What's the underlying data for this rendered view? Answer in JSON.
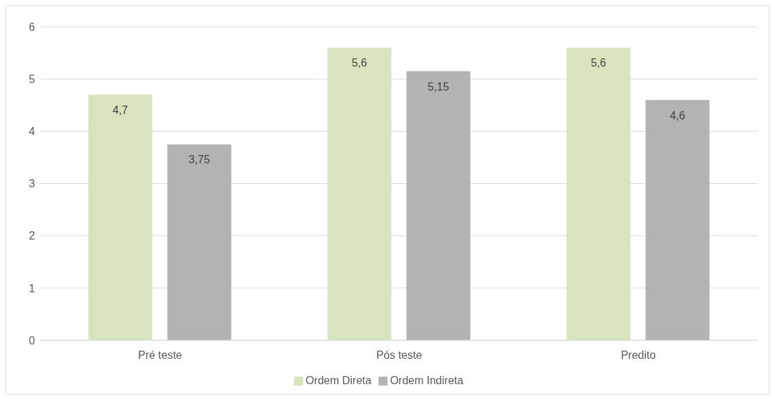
{
  "chart_data": {
    "type": "bar",
    "categories": [
      "Pré teste",
      "Pós teste",
      "Predito"
    ],
    "series": [
      {
        "name": "Ordem Direta",
        "color": "#d7e4bd",
        "values": [
          4.7,
          5.6,
          5.6
        ],
        "value_labels": [
          "4,7",
          "5,6",
          "5,6"
        ]
      },
      {
        "name": "Ordem Indireta",
        "color": "#b3b3b3",
        "values": [
          3.75,
          5.15,
          4.6
        ],
        "value_labels": [
          "3,75",
          "5,15",
          "4,6"
        ]
      }
    ],
    "ylim": [
      0,
      6
    ],
    "yticks": [
      0,
      1,
      2,
      3,
      4,
      5,
      6
    ],
    "grid": "y",
    "legend": "bottom"
  }
}
